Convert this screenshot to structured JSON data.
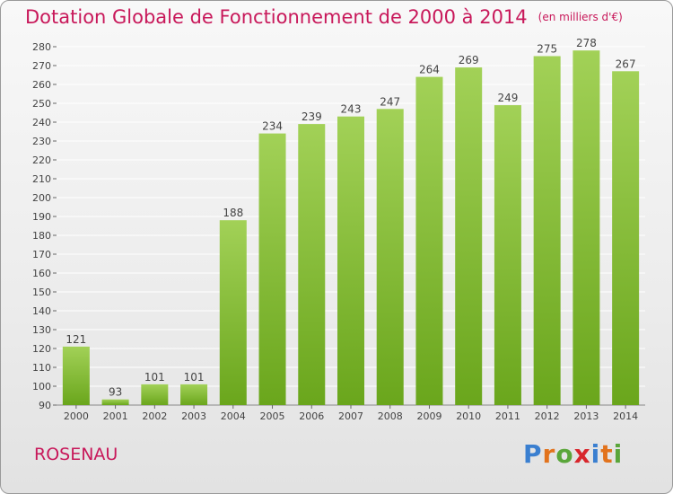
{
  "header": {
    "title": "Dotation Globale de Fonctionnement de 2000 à 2014",
    "unit": "(en milliers d'€)"
  },
  "footer": {
    "commune": "ROSENAU",
    "logo": "Proxiti"
  },
  "colors": {
    "title": "#c8185a",
    "bar_top": "#a2d157",
    "bar_bottom": "#6aa61c",
    "grid": "#ffffff",
    "logo_letters": [
      "#3a7fd0",
      "#e2731d",
      "#5aa63a",
      "#d8262c",
      "#3a7fd0",
      "#e2731d",
      "#5aa63a"
    ]
  },
  "chart_data": {
    "type": "bar",
    "title": "Dotation Globale de Fonctionnement de 2000 à 2014",
    "subtitle": "(en milliers d'€)",
    "categories": [
      "2000",
      "2001",
      "2002",
      "2003",
      "2004",
      "2005",
      "2006",
      "2007",
      "2008",
      "2009",
      "2010",
      "2011",
      "2012",
      "2013",
      "2014"
    ],
    "values": [
      121,
      93,
      101,
      101,
      188,
      234,
      239,
      243,
      247,
      264,
      269,
      249,
      275,
      278,
      267
    ],
    "ylim": [
      90,
      280
    ],
    "yticks": [
      90,
      100,
      110,
      120,
      130,
      140,
      150,
      160,
      170,
      180,
      190,
      200,
      210,
      220,
      230,
      240,
      250,
      260,
      270,
      280
    ],
    "grid": true,
    "legend": "none"
  }
}
